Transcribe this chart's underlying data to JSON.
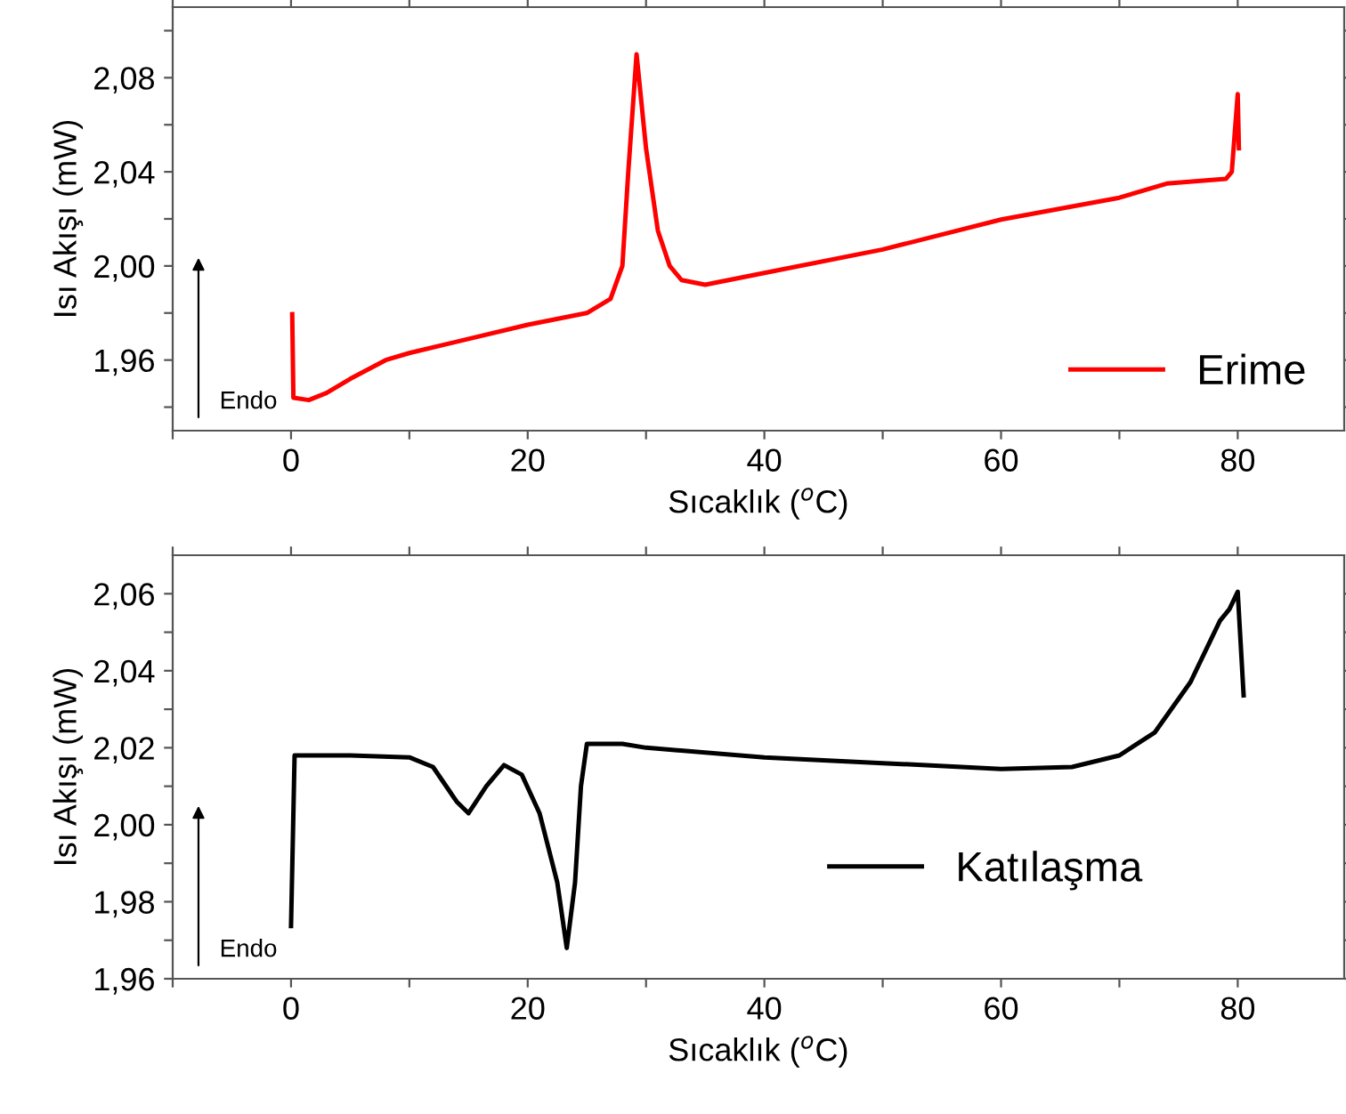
{
  "chart_data": [
    {
      "type": "line",
      "xlabel": "Sıcaklık ($^{o}$C)",
      "ylabel": "Isı Akışı (mW)",
      "xlim": [
        -10,
        89
      ],
      "ylim": [
        1.93,
        2.11
      ],
      "xticks": [
        {
          "value": -10,
          "label": null
        },
        0,
        {
          "value": 10,
          "label": null
        },
        20,
        {
          "value": 30,
          "label": null
        },
        40,
        {
          "value": 50,
          "label": null
        },
        60,
        {
          "value": 70,
          "label": null
        },
        80
      ],
      "yticks": [
        {
          "value": 1.94,
          "label": null
        },
        {
          "value": 1.96,
          "label": "1,96"
        },
        {
          "value": 1.98,
          "label": null
        },
        {
          "value": 2.0,
          "label": "2,00"
        },
        {
          "value": 2.02,
          "label": null
        },
        {
          "value": 2.04,
          "label": "2,04"
        },
        {
          "value": 2.06,
          "label": null
        },
        {
          "value": 2.08,
          "label": "2,08"
        },
        {
          "value": 2.1,
          "label": null
        }
      ],
      "legend": "bottom right",
      "grid": false,
      "annotations": [
        "Endo"
      ],
      "series": [
        {
          "name": "Erime",
          "color": "#ff0000",
          "x": [
            0.1,
            0.2,
            1.5,
            3,
            5,
            8,
            10,
            15,
            20,
            25,
            27,
            28,
            28.5,
            29.2,
            30,
            31,
            32,
            33,
            35,
            40,
            50,
            60,
            70,
            74,
            79,
            79.5,
            80,
            80.1
          ],
          "values": [
            1.9795,
            1.944,
            1.943,
            1.946,
            1.952,
            1.96,
            1.963,
            1.969,
            1.975,
            1.98,
            1.986,
            2.0,
            2.04,
            2.09,
            2.05,
            2.015,
            2.0,
            1.994,
            1.992,
            1.997,
            2.007,
            2.0197,
            2.029,
            2.035,
            2.037,
            2.04,
            2.073,
            2.05
          ]
        }
      ]
    },
    {
      "type": "line",
      "xlabel": "Sıcaklık ($^{o}$C)",
      "ylabel": "Isı Akışı (mW)",
      "xlim": [
        -10,
        89
      ],
      "ylim": [
        1.96,
        2.07
      ],
      "xticks": [
        {
          "value": -10,
          "label": null
        },
        0,
        {
          "value": 10,
          "label": null
        },
        20,
        {
          "value": 30,
          "label": null
        },
        40,
        {
          "value": 50,
          "label": null
        },
        60,
        {
          "value": 70,
          "label": null
        },
        80
      ],
      "yticks": [
        {
          "value": 1.96,
          "label": "1,96"
        },
        {
          "value": 1.97,
          "label": null
        },
        {
          "value": 1.98,
          "label": "1,98"
        },
        {
          "value": 1.99,
          "label": null
        },
        {
          "value": 2.0,
          "label": "2,00"
        },
        {
          "value": 2.01,
          "label": null
        },
        {
          "value": 2.02,
          "label": "2,02"
        },
        {
          "value": 2.03,
          "label": null
        },
        {
          "value": 2.04,
          "label": "2,04"
        },
        {
          "value": 2.05,
          "label": null
        },
        {
          "value": 2.06,
          "label": "2,06"
        }
      ],
      "legend": "bottom right",
      "grid": false,
      "annotations": [
        "Endo"
      ],
      "series": [
        {
          "name": "Katılaşma",
          "color": "#000000",
          "x": [
            0,
            0.3,
            5,
            10,
            12,
            14,
            15,
            16.5,
            18,
            19.5,
            21,
            22.5,
            23.3,
            24,
            24.5,
            25,
            28,
            30,
            40,
            50,
            60,
            66,
            70,
            73,
            76,
            78.5,
            79.3,
            80,
            80.5
          ],
          "values": [
            1.9737,
            2.018,
            2.018,
            2.0175,
            2.015,
            2.006,
            2.003,
            2.01,
            2.0155,
            2.013,
            2.003,
            1.985,
            1.968,
            1.985,
            2.01,
            2.021,
            2.021,
            2.02,
            2.0175,
            2.016,
            2.0145,
            2.015,
            2.018,
            2.024,
            2.037,
            2.053,
            2.056,
            2.0605,
            2.0336
          ]
        }
      ]
    }
  ]
}
